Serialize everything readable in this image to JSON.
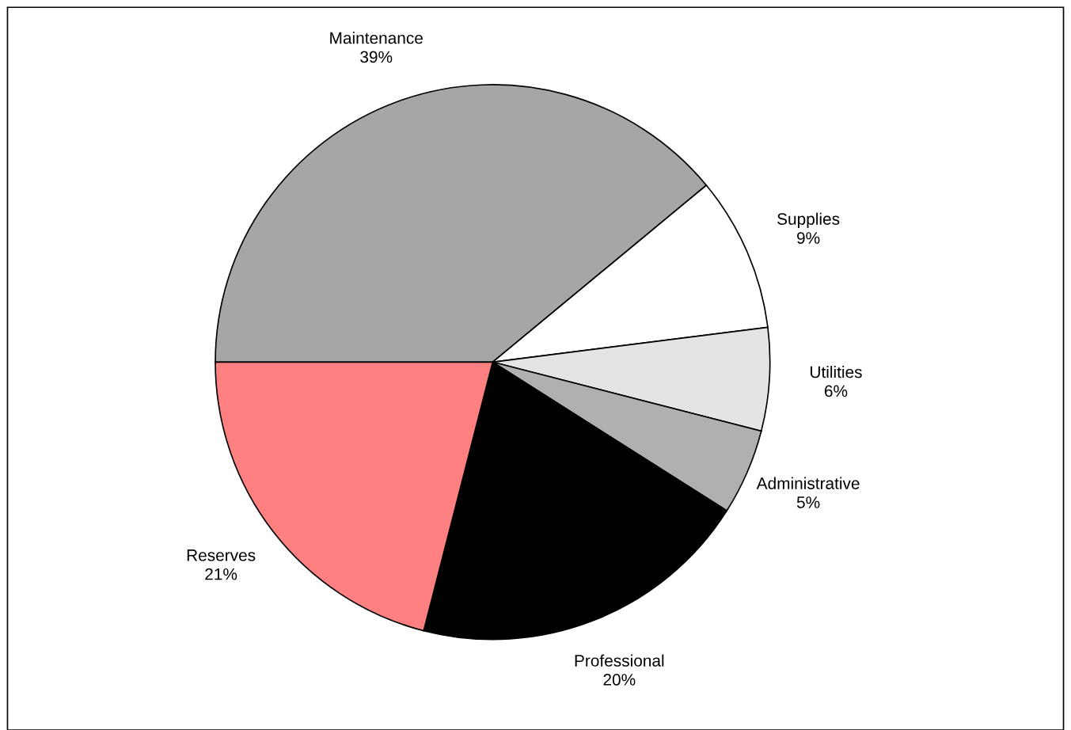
{
  "chart_data": {
    "type": "pie",
    "categories": [
      "Maintenance",
      "Supplies",
      "Utilities",
      "Administrative",
      "Professional",
      "Reserves"
    ],
    "values": [
      39,
      9,
      6,
      5,
      20,
      21
    ],
    "value_labels": [
      "39%",
      "9%",
      "6%",
      "5%",
      "20%",
      "21%"
    ],
    "colors": [
      "#a6a6a6",
      "#ffffff",
      "#e4e4e4",
      "#b0b0b0",
      "#000000",
      "#ff8080"
    ],
    "legend": false
  }
}
